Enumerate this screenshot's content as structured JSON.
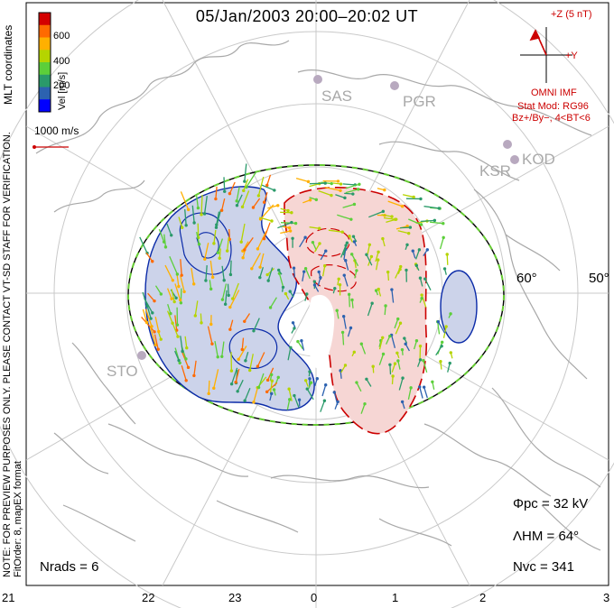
{
  "title": "05/Jan/2003 20:00–20:02 UT",
  "coordinates_label": "MLT coordinates",
  "preview_note": "NOTE: FOR PREVIEW PURPOSES ONLY. PLEASE CONTACT VT-SD STAFF FOR VERIFICATION.",
  "fit_info": "FitOrder: 8, mapEX format",
  "colorbar": {
    "label": "Vel [m/s]",
    "ticks": [
      "600",
      "400",
      "200"
    ],
    "colors": [
      "#d40000",
      "#ff6a00",
      "#ffb000",
      "#b5d400",
      "#5ccf3a",
      "#2a9a6a",
      "#2c62b0",
      "#0000ff"
    ]
  },
  "vector_scale_label": "1000 m/s",
  "imf": {
    "label_top": "+Z (5 nT)",
    "label_right": "+Y",
    "source": "OMNI IMF",
    "model_line1": "Stat Mod: RG96",
    "model_line2": "Bz+/By−, 4<BT<6"
  },
  "stations": [
    "SAS",
    "PGR",
    "KSR",
    "KOD",
    "STO"
  ],
  "latitude_labels": [
    "60°",
    "50°"
  ],
  "stats": {
    "phi_pc": "Φpc = 32 kV",
    "lambda_hm": "ΛHM = 64°",
    "n_vc": "Nvc = 341",
    "n_rads": "Nrads = 6"
  },
  "mlt_ticks": [
    "21",
    "22",
    "23",
    "0",
    "1",
    "2",
    "3"
  ],
  "colors": {
    "negative_cell_fill": "#ccd3ea",
    "negative_contour": "#0a2aa8",
    "positive_cell_fill": "#f6d6d4",
    "positive_contour": "#cc0000",
    "coastline": "#a8a8a8",
    "grid": "#c9c9c9",
    "hm_boundary": "#66cc33"
  }
}
